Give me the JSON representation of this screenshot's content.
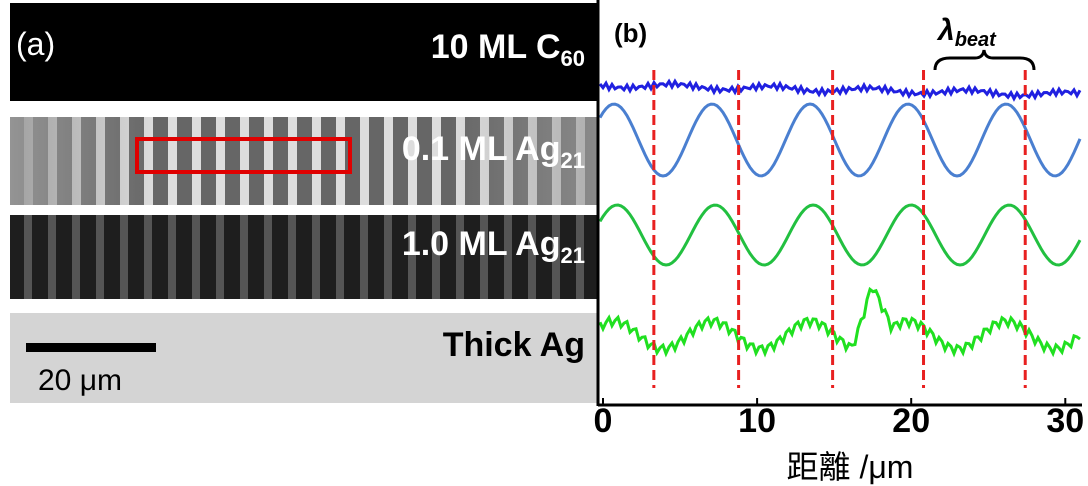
{
  "panel_a": {
    "label": "(a)",
    "strips": [
      {
        "main": "10 ML C",
        "sub": "60"
      },
      {
        "main": "0.1 ML Ag",
        "sub": "21"
      },
      {
        "main": "1.0 ML Ag",
        "sub": "21"
      },
      {
        "main": "Thick Ag",
        "sub": ""
      }
    ],
    "scale_bar": "20 μm"
  },
  "panel_b": {
    "label": "(b)",
    "beat_symbol": "λ",
    "beat_sub": "beat",
    "xlim": [
      0,
      30.5
    ],
    "xticks": [
      0,
      10,
      20,
      30
    ],
    "xlabel": "距離 /μm",
    "dashed_lines": [
      3.3,
      8.8,
      14.9,
      20.8,
      27.4
    ],
    "line_colors": [
      "#2020e0",
      "#4a7fd0",
      "#22c040",
      "#20e020"
    ],
    "dash_color": "#e82020"
  }
}
